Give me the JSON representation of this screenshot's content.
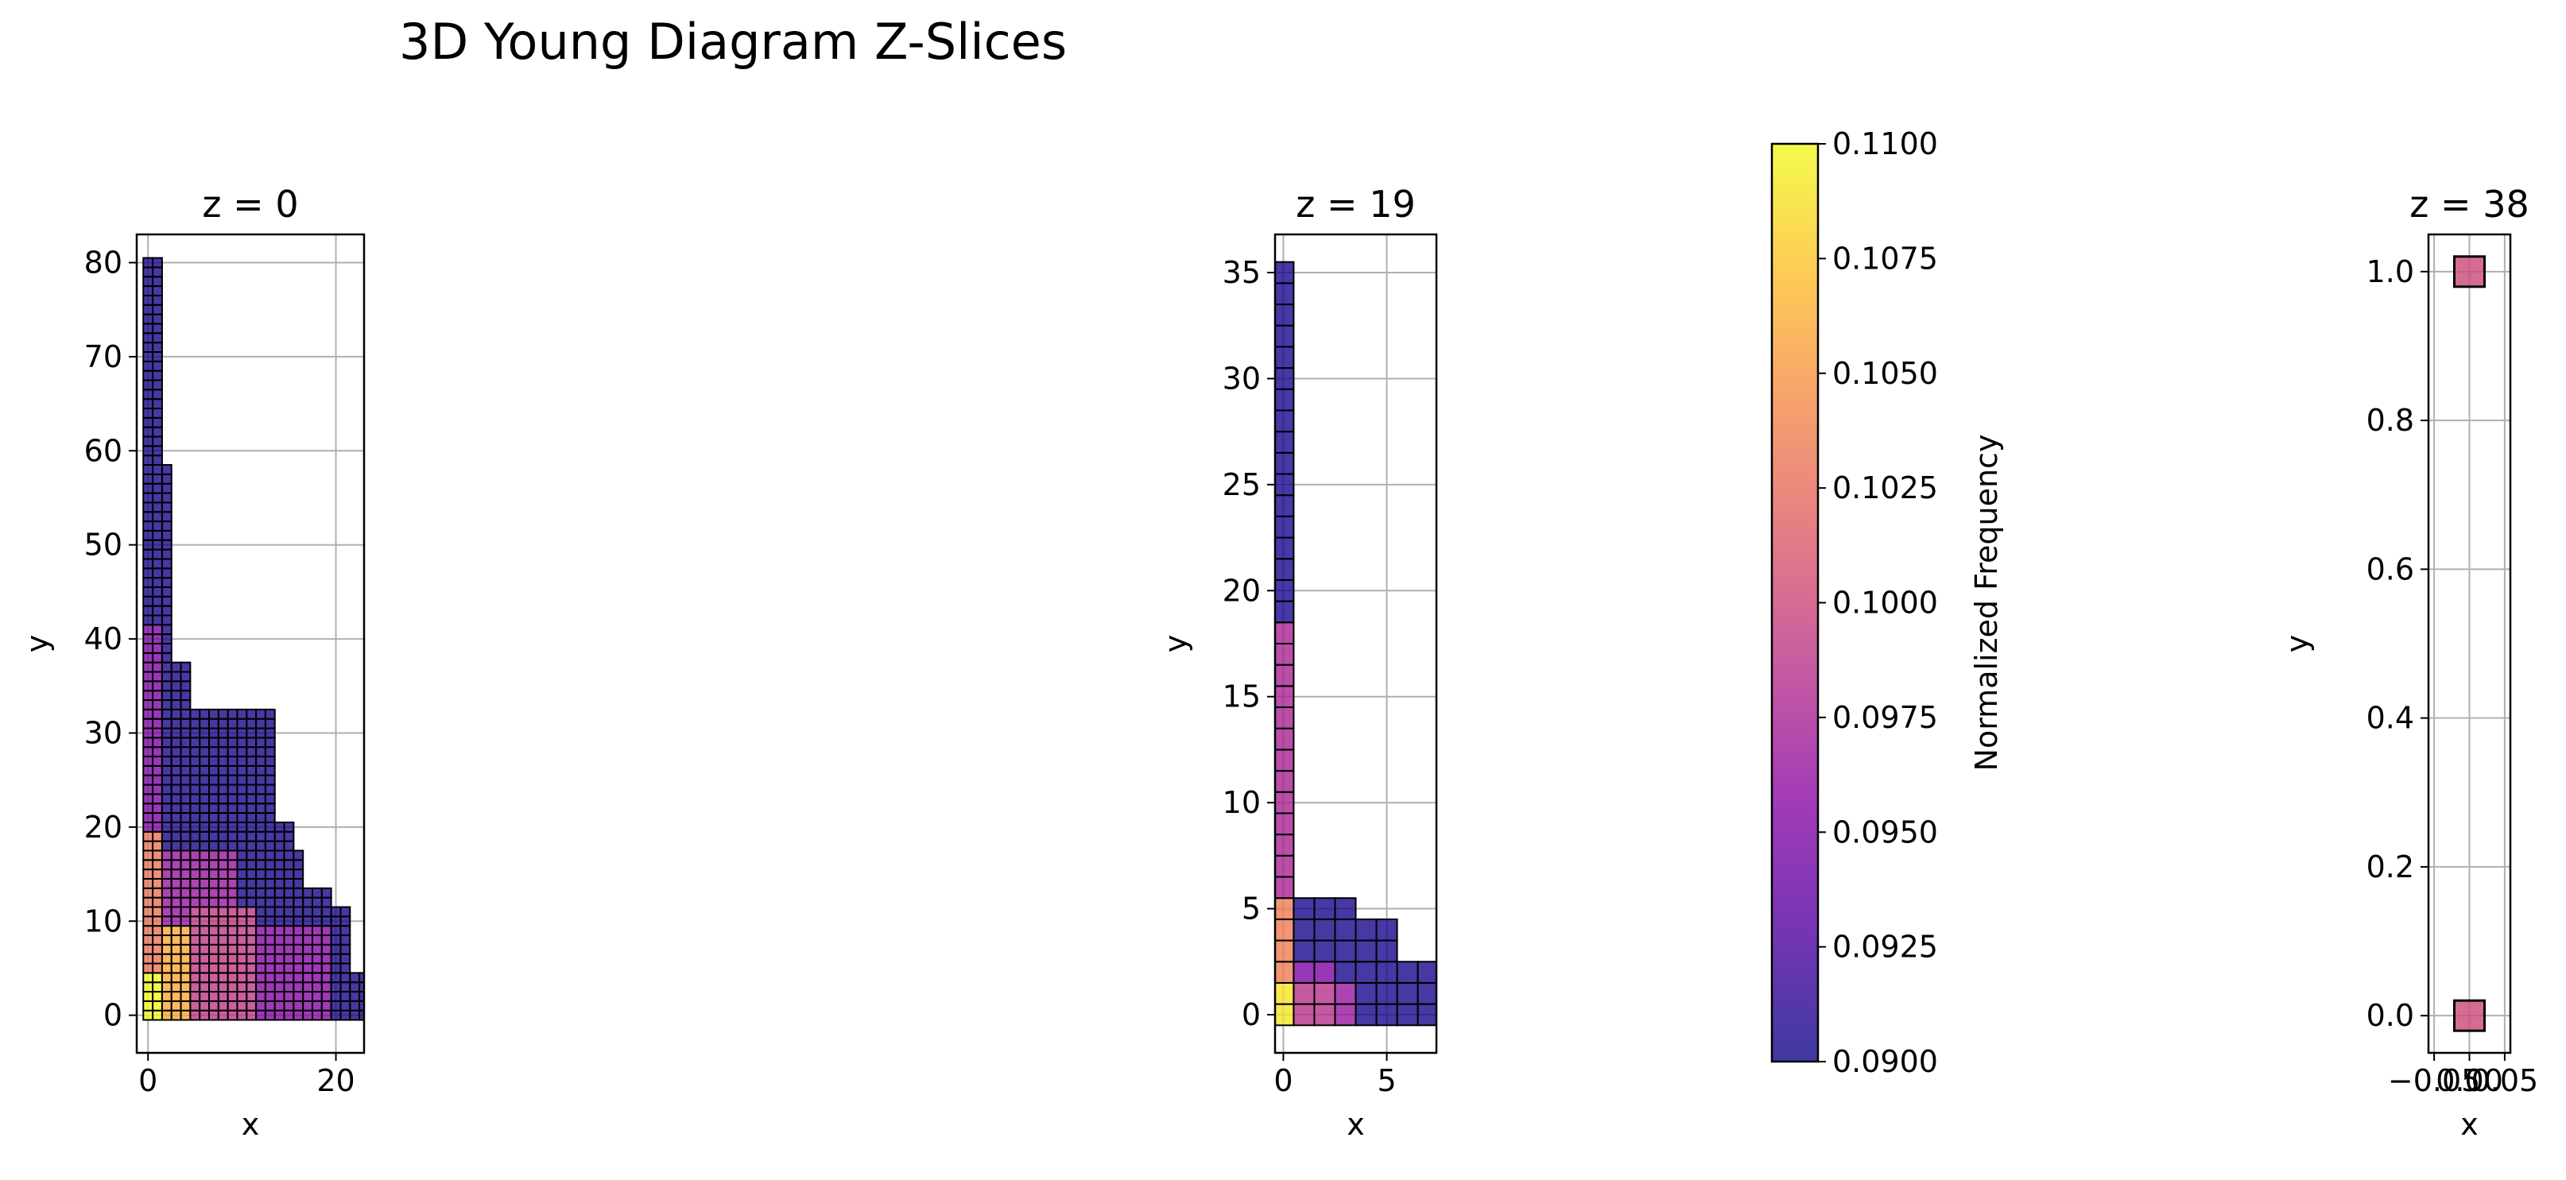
{
  "figure": {
    "title": "3D Young Diagram Z-Slices"
  },
  "colormap": {
    "name": "plasma",
    "stops": [
      "#0d0887",
      "#5302a3",
      "#8b0aa5",
      "#b83289",
      "#db5c68",
      "#f48849",
      "#febd2a",
      "#f0f921"
    ],
    "cell_alpha": 0.8,
    "edge_color": "#000000"
  },
  "chart_data": [
    {
      "type": "heatmap",
      "title": "z = 0",
      "xlabel": "x",
      "ylabel": "y",
      "xlim": [
        -1.2,
        23
      ],
      "ylim": [
        -4,
        83
      ],
      "xticks": [
        {
          "v": 0,
          "label": "0"
        },
        {
          "v": 20,
          "label": "20"
        }
      ],
      "yticks": [
        {
          "v": 0,
          "label": "0"
        },
        {
          "v": 10,
          "label": "10"
        },
        {
          "v": 20,
          "label": "20"
        },
        {
          "v": 30,
          "label": "30"
        },
        {
          "v": 40,
          "label": "40"
        },
        {
          "v": 50,
          "label": "50"
        },
        {
          "v": 60,
          "label": "60"
        },
        {
          "v": 70,
          "label": "70"
        },
        {
          "v": 80,
          "label": "80"
        }
      ],
      "grid": true,
      "column_heights": [
        81,
        81,
        59,
        38,
        38,
        33,
        33,
        33,
        33,
        33,
        33,
        33,
        33,
        33,
        21,
        21,
        18,
        14,
        14,
        14,
        12,
        12,
        5,
        5
      ],
      "bands": [
        {
          "y0": 0,
          "y1": 5,
          "x0": 0,
          "x1": 2,
          "value": 0.11
        },
        {
          "y0": 0,
          "y1": 10,
          "x0": 2,
          "x1": 5,
          "value": 0.106
        },
        {
          "y0": 5,
          "y1": 20,
          "x0": 0,
          "x1": 2,
          "value": 0.103
        },
        {
          "y0": 0,
          "y1": 12,
          "x0": 5,
          "x1": 12,
          "value": 0.099
        },
        {
          "y0": 10,
          "y1": 18,
          "x0": 2,
          "x1": 10,
          "value": 0.0965
        },
        {
          "y0": 18,
          "y1": 42,
          "x0": 0,
          "x1": 2,
          "value": 0.095
        },
        {
          "y0": 0,
          "y1": 10,
          "x0": 12,
          "x1": 20,
          "value": 0.0955
        }
      ],
      "default_value": 0.0905
    },
    {
      "type": "heatmap",
      "title": "z = 19",
      "xlabel": "x",
      "ylabel": "y",
      "xlim": [
        -0.4,
        7.4
      ],
      "ylim": [
        -1.8,
        36.8
      ],
      "xticks": [
        {
          "v": 0,
          "label": "0"
        },
        {
          "v": 5,
          "label": "5"
        }
      ],
      "yticks": [
        {
          "v": 0,
          "label": "0"
        },
        {
          "v": 5,
          "label": "5"
        },
        {
          "v": 10,
          "label": "10"
        },
        {
          "v": 15,
          "label": "15"
        },
        {
          "v": 20,
          "label": "20"
        },
        {
          "v": 25,
          "label": "25"
        },
        {
          "v": 30,
          "label": "30"
        },
        {
          "v": 35,
          "label": "35"
        }
      ],
      "grid": true,
      "column_heights": [
        36,
        6,
        6,
        6,
        5,
        5,
        3,
        3
      ],
      "bands": [
        {
          "y0": 0,
          "y1": 2,
          "x0": 0,
          "x1": 1,
          "value": 0.109
        },
        {
          "y0": 2,
          "y1": 6,
          "x0": 0,
          "x1": 1,
          "value": 0.1035
        },
        {
          "y0": 0,
          "y1": 2,
          "x0": 1,
          "x1": 3,
          "value": 0.0985
        },
        {
          "y0": 0,
          "y1": 2,
          "x0": 3,
          "x1": 4,
          "value": 0.0965
        },
        {
          "y0": 6,
          "y1": 19,
          "x0": 0,
          "x1": 1,
          "value": 0.0975
        },
        {
          "y0": 2,
          "y1": 3,
          "x0": 1,
          "x1": 3,
          "value": 0.095
        }
      ],
      "default_value": 0.0905
    },
    {
      "type": "heatmap",
      "title": "z = 38",
      "xlabel": "x",
      "ylabel": "y",
      "xlim": [
        -0.058,
        0.058
      ],
      "ylim": [
        -0.05,
        1.05
      ],
      "xticks": [
        {
          "v": -0.05,
          "label": "−0.05"
        },
        {
          "v": 0,
          "label": "0.00"
        },
        {
          "v": 0.05,
          "label": "0.05"
        }
      ],
      "yticks": [
        {
          "v": 0,
          "label": "0.0"
        },
        {
          "v": 0.2,
          "label": "0.2"
        },
        {
          "v": 0.4,
          "label": "0.4"
        },
        {
          "v": 0.6,
          "label": "0.6"
        },
        {
          "v": 0.8,
          "label": "0.8"
        },
        {
          "v": 1.0,
          "label": "1.0"
        }
      ],
      "grid": true,
      "points": [
        {
          "x": 0,
          "y": 0,
          "value": 0.1
        },
        {
          "x": 0,
          "y": 1,
          "value": 0.1
        }
      ]
    }
  ],
  "colorbar": {
    "label": "Normalized Frequency",
    "min": 0.09,
    "max": 0.11,
    "ticks": [
      {
        "v": 0.09,
        "label": "0.0900"
      },
      {
        "v": 0.0925,
        "label": "0.0925"
      },
      {
        "v": 0.095,
        "label": "0.0950"
      },
      {
        "v": 0.0975,
        "label": "0.0975"
      },
      {
        "v": 0.1,
        "label": "0.1000"
      },
      {
        "v": 0.1025,
        "label": "0.1025"
      },
      {
        "v": 0.105,
        "label": "0.1050"
      },
      {
        "v": 0.1075,
        "label": "0.1075"
      },
      {
        "v": 0.11,
        "label": "0.1100"
      }
    ]
  }
}
